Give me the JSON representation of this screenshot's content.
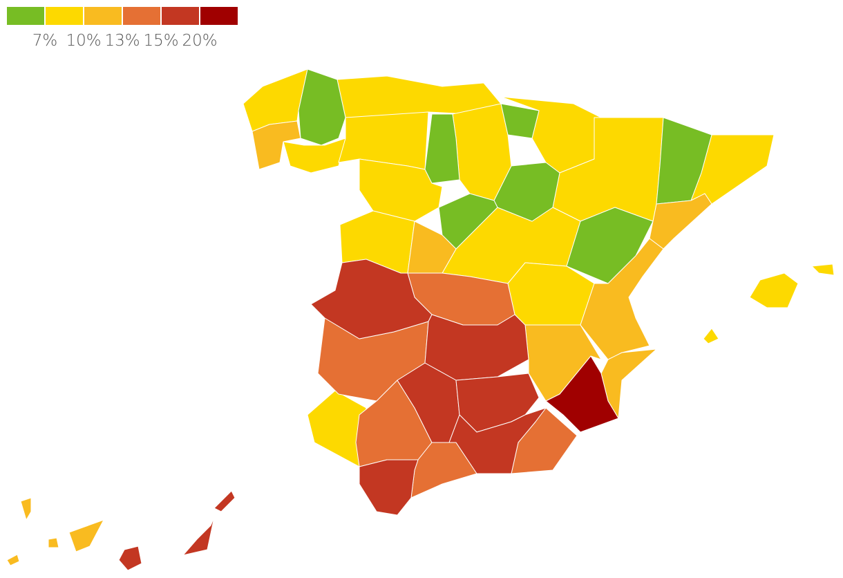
{
  "legend": {
    "colors": [
      "#77bd24",
      "#fdd900",
      "#f9bb20",
      "#e57034",
      "#c33722",
      "#a00000"
    ],
    "ticks": [
      {
        "value": 7,
        "label": "7%"
      },
      {
        "value": 10,
        "label": "10%"
      },
      {
        "value": 13,
        "label": "13%"
      },
      {
        "value": 15,
        "label": "15%"
      },
      {
        "value": 20,
        "label": "20%"
      }
    ]
  }
}
